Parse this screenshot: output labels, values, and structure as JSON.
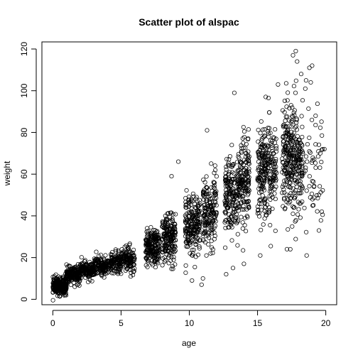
{
  "chart_data": {
    "type": "scatter",
    "title": "Scatter plot of alspac",
    "xlabel": "age",
    "ylabel": "weight",
    "xlim": [
      -0.8,
      20.8
    ],
    "ylim": [
      -2.6,
      123.4
    ],
    "xticks": [
      0,
      5,
      10,
      15,
      20
    ],
    "yticks": [
      0,
      20,
      40,
      60,
      80,
      100,
      120
    ],
    "marker": "open-circle",
    "grid": false,
    "legend": "none",
    "point_color": "#000000",
    "clusters": [
      {
        "age_min": 0.0,
        "age_max": 1.0,
        "weight_mean": 6.5,
        "weight_sd": 2.0,
        "count": 260
      },
      {
        "age_min": 1.0,
        "age_max": 2.0,
        "weight_mean": 11.5,
        "weight_sd": 1.9,
        "count": 180
      },
      {
        "age_min": 2.0,
        "age_max": 3.0,
        "weight_mean": 14.0,
        "weight_sd": 2.0,
        "count": 150
      },
      {
        "age_min": 3.0,
        "age_max": 4.0,
        "weight_mean": 15.8,
        "weight_sd": 2.2,
        "count": 140
      },
      {
        "age_min": 4.0,
        "age_max": 5.0,
        "weight_mean": 17.5,
        "weight_sd": 2.5,
        "count": 130
      },
      {
        "age_min": 5.0,
        "age_max": 6.0,
        "weight_mean": 19.5,
        "weight_sd": 3.0,
        "count": 120
      },
      {
        "age_min": 6.8,
        "age_max": 7.8,
        "weight_mean": 24.5,
        "weight_sd": 4.5,
        "count": 200
      },
      {
        "age_min": 8.0,
        "age_max": 9.0,
        "weight_mean": 29.0,
        "weight_sd": 5.5,
        "count": 190
      },
      {
        "age_min": 9.7,
        "age_max": 10.8,
        "weight_mean": 36.0,
        "weight_sd": 7.0,
        "count": 200
      },
      {
        "age_min": 11.0,
        "age_max": 12.0,
        "weight_mean": 42.0,
        "weight_sd": 8.5,
        "count": 170
      },
      {
        "age_min": 12.6,
        "age_max": 13.6,
        "weight_mean": 49.0,
        "weight_sd": 10.0,
        "count": 180
      },
      {
        "age_min": 13.6,
        "age_max": 14.4,
        "weight_mean": 55.0,
        "weight_sd": 10.5,
        "count": 160
      },
      {
        "age_min": 15.0,
        "age_max": 16.4,
        "weight_mean": 62.0,
        "weight_sd": 11.0,
        "count": 260
      },
      {
        "age_min": 16.8,
        "age_max": 18.3,
        "weight_mean": 68.0,
        "weight_sd": 13.0,
        "count": 320
      },
      {
        "age_min": 18.3,
        "age_max": 19.8,
        "weight_mean": 66.0,
        "weight_sd": 16.0,
        "count": 60
      }
    ],
    "outliers": [
      {
        "x": 17.8,
        "y": 119
      },
      {
        "x": 17.6,
        "y": 117
      },
      {
        "x": 17.9,
        "y": 114
      },
      {
        "x": 19.0,
        "y": 112
      },
      {
        "x": 18.8,
        "y": 111
      },
      {
        "x": 18.2,
        "y": 108
      },
      {
        "x": 18.9,
        "y": 104
      },
      {
        "x": 18.5,
        "y": 101
      },
      {
        "x": 13.3,
        "y": 99
      },
      {
        "x": 11.3,
        "y": 81
      },
      {
        "x": 11.0,
        "y": 10
      },
      {
        "x": 10.9,
        "y": 7
      },
      {
        "x": 10.2,
        "y": 9
      },
      {
        "x": 12.7,
        "y": 12
      },
      {
        "x": 13.2,
        "y": 15
      },
      {
        "x": 14.0,
        "y": 17
      },
      {
        "x": 15.2,
        "y": 21
      },
      {
        "x": 17.4,
        "y": 24
      },
      {
        "x": 18.6,
        "y": 21
      },
      {
        "x": 19.5,
        "y": 33
      },
      {
        "x": 19.6,
        "y": 70
      },
      {
        "x": 19.9,
        "y": 72
      },
      {
        "x": 8.7,
        "y": 59
      },
      {
        "x": 9.2,
        "y": 66
      },
      {
        "x": 16.5,
        "y": 103
      },
      {
        "x": 15.6,
        "y": 97
      }
    ]
  }
}
